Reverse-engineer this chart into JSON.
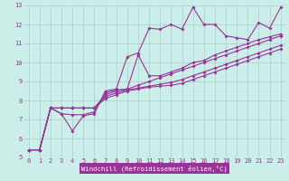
{
  "background_color": "#cceee8",
  "grid_color": "#aacccc",
  "line_color": "#993399",
  "marker": "D",
  "markersize": 1.8,
  "linewidth": 0.8,
  "xlabel": "Windchill (Refroidissement éolien,°C)",
  "xlabel_fontsize": 5.2,
  "tick_fontsize": 5.0,
  "xlim": [
    -0.5,
    23.5
  ],
  "ylim": [
    5,
    13
  ],
  "yticks": [
    5,
    6,
    7,
    8,
    9,
    10,
    11,
    12,
    13
  ],
  "xticks": [
    0,
    1,
    2,
    3,
    4,
    5,
    6,
    7,
    8,
    9,
    10,
    11,
    12,
    13,
    14,
    15,
    16,
    17,
    18,
    19,
    20,
    21,
    22,
    23
  ],
  "series": [
    [
      5.4,
      5.4,
      7.6,
      7.3,
      6.4,
      7.2,
      7.3,
      8.5,
      8.6,
      10.3,
      10.5,
      11.8,
      11.75,
      12.0,
      11.75,
      12.9,
      12.0,
      12.0,
      11.4,
      11.3,
      11.2,
      12.1,
      11.8,
      12.9
    ],
    [
      5.4,
      5.4,
      7.6,
      7.3,
      7.25,
      7.25,
      7.4,
      8.4,
      8.55,
      8.6,
      10.4,
      9.3,
      9.3,
      9.5,
      9.7,
      10.0,
      10.1,
      10.4,
      10.6,
      10.8,
      11.0,
      11.2,
      11.35,
      11.5
    ],
    [
      5.4,
      5.4,
      7.6,
      7.6,
      7.6,
      7.6,
      7.6,
      8.3,
      8.5,
      8.6,
      8.8,
      9.0,
      9.2,
      9.4,
      9.6,
      9.8,
      10.0,
      10.2,
      10.4,
      10.6,
      10.8,
      11.0,
      11.2,
      11.4
    ],
    [
      5.4,
      5.4,
      7.6,
      7.6,
      7.6,
      7.6,
      7.6,
      8.2,
      8.4,
      8.55,
      8.65,
      8.75,
      8.85,
      8.95,
      9.1,
      9.3,
      9.5,
      9.7,
      9.9,
      10.1,
      10.3,
      10.5,
      10.7,
      10.9
    ],
    [
      5.4,
      5.4,
      7.6,
      7.6,
      7.6,
      7.6,
      7.6,
      8.1,
      8.3,
      8.5,
      8.6,
      8.7,
      8.75,
      8.8,
      8.9,
      9.1,
      9.3,
      9.5,
      9.7,
      9.9,
      10.1,
      10.3,
      10.5,
      10.7
    ]
  ]
}
